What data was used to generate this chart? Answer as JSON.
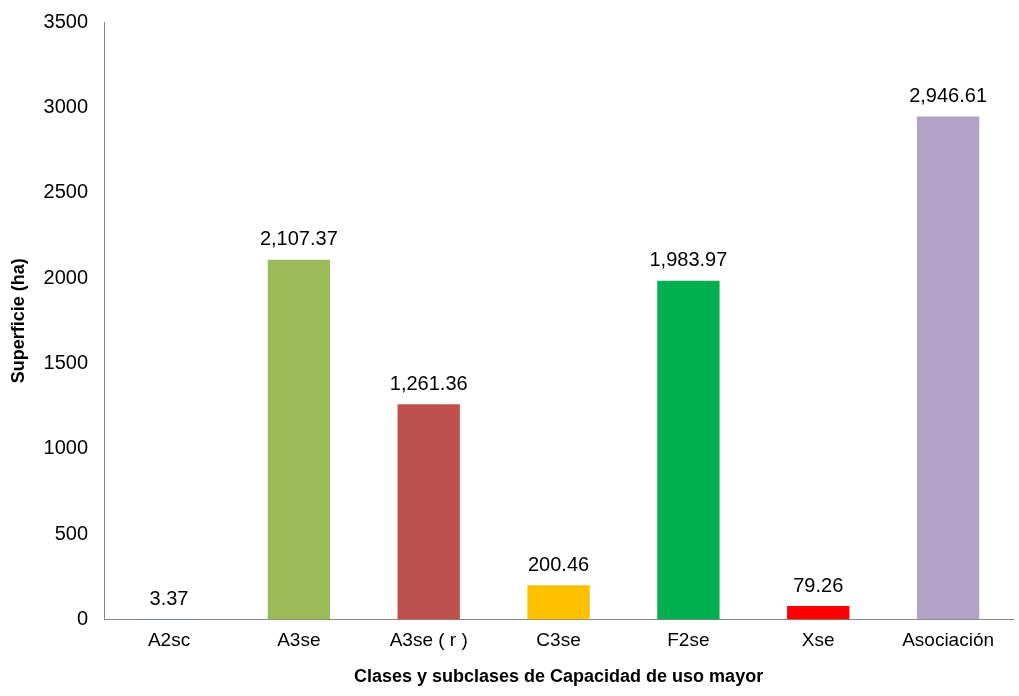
{
  "chart_data": {
    "type": "bar",
    "xlabel": "Clases y subclases de Capacidad de uso mayor",
    "ylabel": "Superficie (ha)",
    "categories": [
      "A2sc",
      "A3se",
      "A3se ( r )",
      "C3se",
      "F2se",
      "Xse",
      "Asociación"
    ],
    "values": [
      3.37,
      2107.37,
      1261.36,
      200.46,
      1983.97,
      79.26,
      2946.61
    ],
    "colors": [
      "#4f81bd",
      "#9bbb59",
      "#c0504d",
      "#ffc000",
      "#00b050",
      "#ff0000",
      "#b3a2c7"
    ],
    "value_labels": [
      "3.37",
      "2,107.37",
      "1,261.36",
      "200.46",
      "1,983.97",
      "79.26",
      "2,946.61"
    ],
    "ylim": [
      0,
      3500
    ],
    "yticks": [
      0,
      500,
      1000,
      1500,
      2000,
      2500,
      3000,
      3500
    ],
    "grid": false,
    "legend": false
  }
}
